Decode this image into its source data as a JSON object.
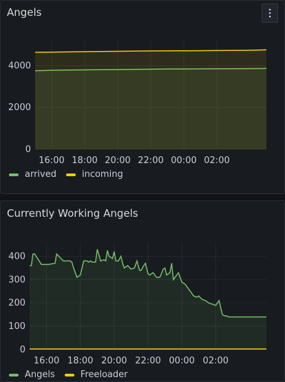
{
  "colors": {
    "green": "#73bf69",
    "yellow": "#f2cc0c",
    "grid": "#26292e",
    "text": "#ccccdc"
  },
  "panel1": {
    "title": "Angels",
    "menu_icon": "kebab-menu-icon",
    "legend": [
      {
        "label": "arrived",
        "color": "#73bf69"
      },
      {
        "label": "incoming",
        "color": "#f2cc0c"
      }
    ]
  },
  "panel2": {
    "title": "Currently Working Angels",
    "legend": [
      {
        "label": "Angels",
        "color": "#73bf69"
      },
      {
        "label": "Freeloader",
        "color": "#f2cc0c"
      }
    ]
  },
  "chart_data": [
    {
      "type": "area",
      "x_ticks": [
        "16:00",
        "18:00",
        "20:00",
        "22:00",
        "00:00",
        "02:00"
      ],
      "y_ticks": [
        0,
        2000,
        4000
      ],
      "ylim": [
        0,
        5200
      ],
      "grid": true,
      "legend_placement": "bottom-left",
      "x": [
        0,
        1,
        2,
        3,
        4,
        5,
        6,
        7,
        8,
        9,
        10,
        11,
        12,
        13,
        14
      ],
      "series": [
        {
          "name": "arrived",
          "color": "#73bf69",
          "values": [
            3760,
            3780,
            3790,
            3800,
            3810,
            3815,
            3825,
            3835,
            3840,
            3845,
            3850,
            3855,
            3860,
            3865,
            3870
          ]
        },
        {
          "name": "incoming",
          "color": "#f2cc0c",
          "values": [
            4640,
            4650,
            4660,
            4670,
            4680,
            4690,
            4700,
            4705,
            4710,
            4715,
            4720,
            4725,
            4730,
            4740,
            4760
          ]
        }
      ]
    },
    {
      "type": "line",
      "x_ticks": [
        "16:00",
        "18:00",
        "20:00",
        "22:00",
        "00:00",
        "02:00"
      ],
      "y_ticks": [
        0,
        100,
        200,
        300,
        400
      ],
      "ylim": [
        0,
        460
      ],
      "grid": true,
      "legend_placement": "bottom-left",
      "series": [
        {
          "name": "Angels",
          "color": "#73bf69",
          "x": [
            0,
            0.1,
            0.2,
            0.3,
            0.7,
            0.9,
            1.1,
            1.5,
            1.6,
            2.0,
            2.4,
            2.5,
            2.6,
            2.8,
            3.0,
            3.2,
            3.4,
            3.5,
            3.6,
            3.7,
            3.9,
            4.0,
            4.2,
            4.4,
            4.5,
            4.6,
            4.7,
            4.9,
            5.0,
            5.1,
            5.25,
            5.4,
            5.5,
            5.6,
            5.8,
            6.0,
            6.2,
            6.35,
            6.5,
            6.6,
            6.7,
            6.85,
            7.0,
            7.1,
            7.3,
            7.5,
            7.7,
            7.9,
            8.0,
            8.1,
            8.3,
            8.4,
            8.5,
            8.6,
            8.8,
            9.0,
            9.2,
            9.3,
            9.5,
            9.7,
            9.9,
            10.0,
            10.2,
            10.4,
            10.6,
            10.8,
            11.0,
            11.2,
            11.4,
            11.5,
            11.6,
            11.8,
            12.0,
            12.2,
            12.4,
            12.6,
            12.8,
            13.0,
            13.2,
            13.4,
            13.6,
            13.8,
            14.0
          ],
          "values": [
            360,
            360,
            410,
            410,
            365,
            365,
            365,
            370,
            410,
            380,
            380,
            375,
            350,
            310,
            320,
            380,
            380,
            375,
            380,
            375,
            375,
            430,
            380,
            385,
            380,
            425,
            400,
            390,
            420,
            380,
            380,
            400,
            370,
            350,
            360,
            345,
            350,
            380,
            340,
            340,
            355,
            370,
            325,
            320,
            330,
            310,
            310,
            345,
            350,
            320,
            330,
            370,
            300,
            310,
            330,
            290,
            280,
            270,
            250,
            230,
            225,
            230,
            215,
            210,
            200,
            195,
            190,
            210,
            150,
            145,
            145,
            140,
            140,
            140,
            140,
            140,
            140,
            140,
            140,
            140,
            140,
            140,
            140
          ]
        },
        {
          "name": "Freeloader",
          "color": "#f2cc0c",
          "x": [
            0,
            14
          ],
          "values": [
            3,
            3
          ]
        }
      ]
    }
  ]
}
